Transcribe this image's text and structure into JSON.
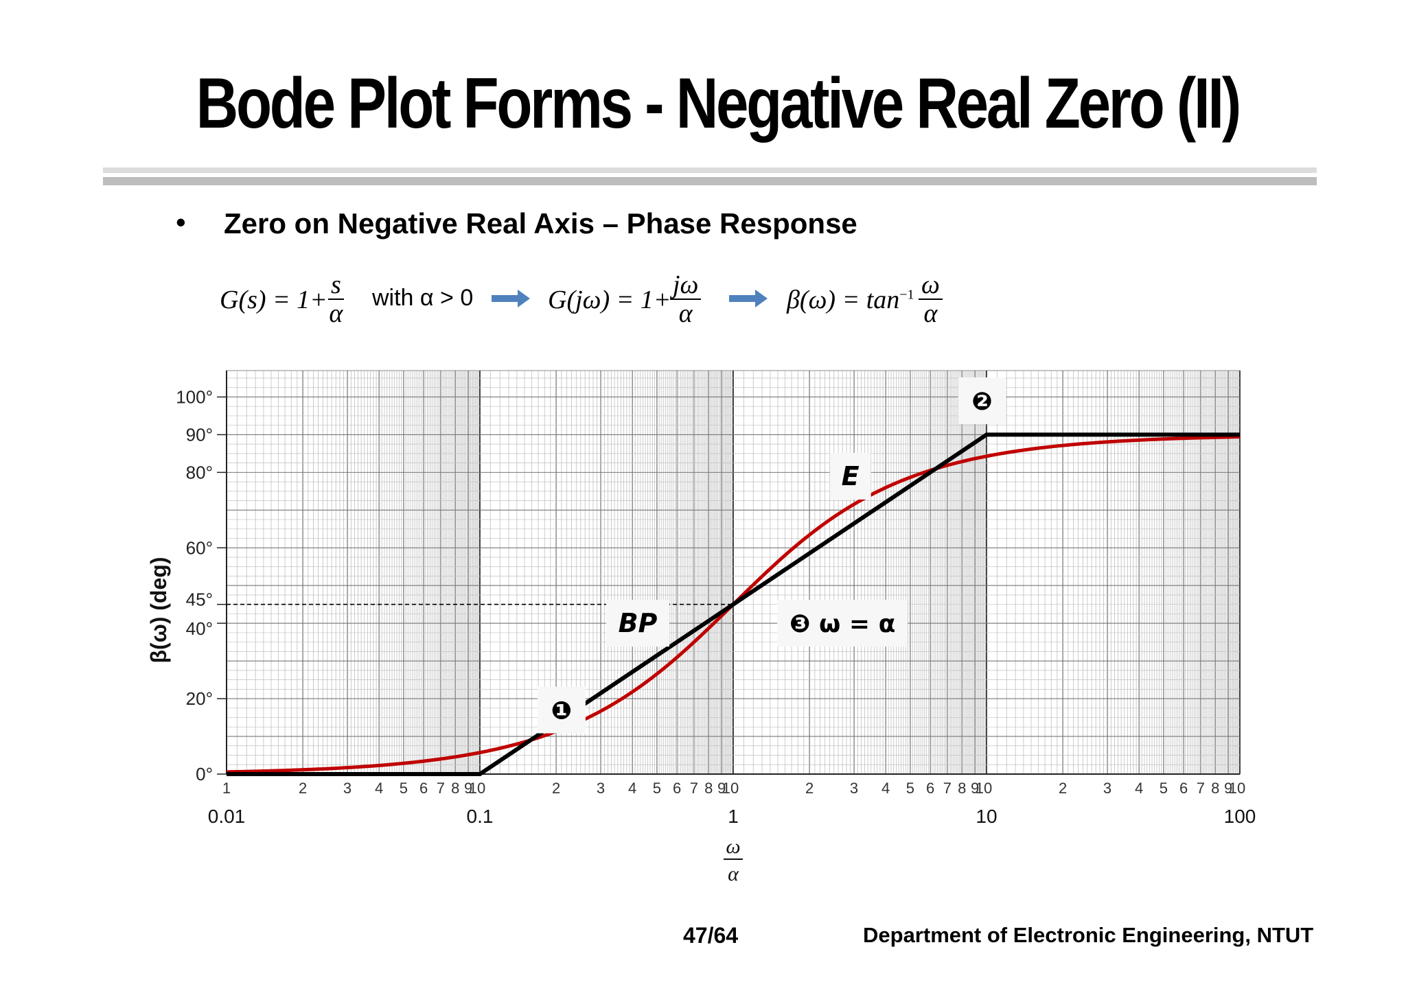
{
  "slide": {
    "title": "Bode Plot Forms - Negative Real Zero (II)",
    "bullet_symbol": "•",
    "bullet_text": "Zero on Negative Real Axis – Phase Response",
    "page": "47/64",
    "footer": "Department of Electronic Engineering, NTUT"
  },
  "formula": {
    "g_s_lhs": "G(s) = 1+",
    "g_s_num": "s",
    "g_s_den": "α",
    "condition": "with α > 0",
    "g_jw_lhs": "G(jω) = 1+",
    "g_jw_num": "jω",
    "g_jw_den": "α",
    "beta_lhs": "β(ω) = tan",
    "beta_sup": "−1",
    "beta_num": "ω",
    "beta_den": "α",
    "arrow_color": "#4f81bd"
  },
  "chart_data": {
    "type": "line",
    "ylabel": "β(ω)  (deg)",
    "xlabel_num": "ω",
    "xlabel_den": "α",
    "x_scale": "log",
    "xlim": [
      0.01,
      100
    ],
    "ylim": [
      0,
      107
    ],
    "x_decade_labels": [
      "0.01",
      "0.1",
      "1",
      "10",
      "100"
    ],
    "x_minor_tick_labels": [
      "1",
      "2",
      "3",
      "4",
      "5",
      "6",
      "7",
      "8",
      "9",
      "10"
    ],
    "y_tick_values": [
      0,
      20,
      40,
      45,
      60,
      80,
      90,
      100
    ],
    "y_tick_labels": [
      "0°",
      "20°",
      "40°",
      "45°",
      "60°",
      "80°",
      "90°",
      "100°"
    ],
    "reference_line": {
      "y": 45,
      "x_from": 0.01,
      "x_to": 1,
      "style": "dashed"
    },
    "grid": true,
    "series": [
      {
        "role": "exact",
        "color": "#c00000",
        "function": "atan",
        "x": [
          0.01,
          0.02,
          0.05,
          0.1,
          0.2,
          0.5,
          1,
          2,
          5,
          10,
          20,
          50,
          100
        ],
        "y": [
          0.57,
          1.15,
          2.86,
          5.71,
          11.31,
          26.57,
          45,
          63.43,
          78.69,
          84.29,
          87.14,
          88.85,
          89.43
        ]
      },
      {
        "role": "asymptotic",
        "color": "#000000",
        "x": [
          0.01,
          0.1,
          1,
          10,
          100
        ],
        "y": [
          0,
          0,
          45,
          90,
          90
        ]
      }
    ],
    "annotations": [
      {
        "id": "ann-1",
        "text": "❶",
        "x": 0.21,
        "y": 17
      },
      {
        "id": "ann-2",
        "text": "❷",
        "x": 9.6,
        "y": 99
      },
      {
        "id": "ann-3",
        "text": "❸ ω = α",
        "x": 2.7,
        "y": 40
      },
      {
        "id": "ann-bp",
        "text": "BP",
        "x": 0.42,
        "y": 40
      },
      {
        "id": "ann-e",
        "text": "E",
        "x": 2.9,
        "y": 79
      }
    ]
  }
}
